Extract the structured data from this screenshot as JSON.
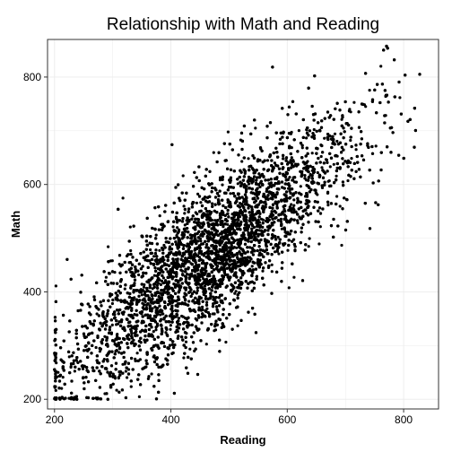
{
  "chart_data": {
    "type": "scatter",
    "title": "Relationship with Math and Reading",
    "xlabel": "Reading",
    "ylabel": "Math",
    "xlim": [
      188,
      860
    ],
    "ylim": [
      182,
      870
    ],
    "xticks": [
      200,
      400,
      600,
      800
    ],
    "yticks": [
      200,
      400,
      600,
      800
    ],
    "grid": true,
    "marker_color": "#000000",
    "distribution": {
      "description": "dense elliptical cloud of points, strongly positive correlation, clipped at 200 on both axes",
      "mean": [
        470,
        470
      ],
      "sd": [
        120,
        120
      ],
      "correlation": 0.82,
      "floor": [
        200,
        200
      ]
    }
  }
}
